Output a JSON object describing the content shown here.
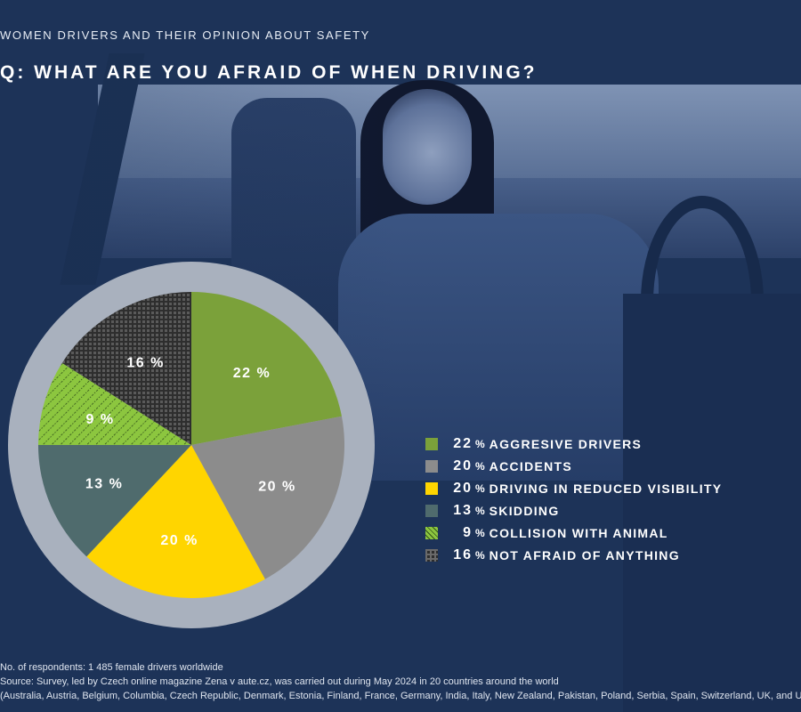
{
  "header": "WOMEN DRIVERS AND THEIR OPINION ABOUT SAFETY",
  "question": "Q:  WHAT ARE YOU AFRAID OF WHEN DRIVING?",
  "pct_symbol": "%",
  "chart_data": {
    "type": "pie",
    "title": "",
    "slices": [
      {
        "label": "AGGRESIVE DRIVERS",
        "value": 22,
        "color": "#7ba13a",
        "pattern": "solid"
      },
      {
        "label": "ACCIDENTS",
        "value": 20,
        "color": "#8c8c8c",
        "pattern": "solid"
      },
      {
        "label": "DRIVING IN REDUCED VISIBILITY",
        "value": 20,
        "color": "#ffd500",
        "pattern": "solid"
      },
      {
        "label": "SKIDDING",
        "value": 13,
        "color": "#4f6b6d",
        "pattern": "solid"
      },
      {
        "label": "COLLISION WITH ANIMAL",
        "value": 9,
        "color": "#8cc63f",
        "pattern": "dots"
      },
      {
        "label": "NOT AFRAID OF ANYTHING",
        "value": 16,
        "color": "#3c3c3c",
        "pattern": "grid"
      }
    ],
    "ring_color": "#a9b1be"
  },
  "footnote": {
    "line1": "No. of respondents: 1 485 female drivers worldwide",
    "line2": "Source: Survey, led by Czech online magazine Zena v aute.cz, was carried out during May 2024 in 20 countries around the world",
    "line3": "(Australia, Austria, Belgium, Columbia, Czech Republic, Denmark, Estonia, Finland, France, Germany, India, Italy, New Zealand, Pakistan, Poland, Serbia, Spain, Switzerland, UK, and USA)."
  }
}
